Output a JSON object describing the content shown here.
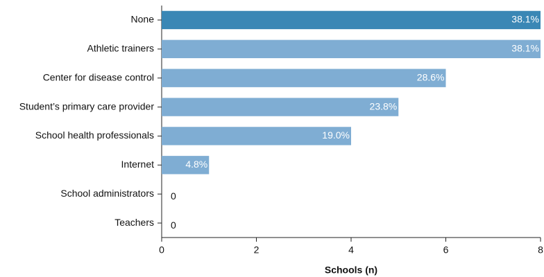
{
  "chart_data": {
    "type": "hbar",
    "x_label": "Schools (n)",
    "categories": [
      "None",
      "Athletic trainers",
      "Center for disease control",
      "Student’s primary care provider",
      "School health professionals",
      "Internet",
      "School administrators",
      "Teachers"
    ],
    "values": [
      8,
      8,
      6,
      5,
      4,
      1,
      0,
      0
    ],
    "value_labels": [
      "38.1%",
      "38.1%",
      "28.6%",
      "23.8%",
      "19.0%",
      "4.8%",
      "0",
      "0"
    ],
    "colors": [
      "#3a87b5",
      "#7fadd3",
      "#7fadd3",
      "#7fadd3",
      "#7fadd3",
      "#7fadd3",
      "#7fadd3",
      "#7fadd3"
    ],
    "xlim": [
      0,
      8
    ],
    "xticks": [
      0,
      2,
      4,
      6,
      8
    ]
  }
}
